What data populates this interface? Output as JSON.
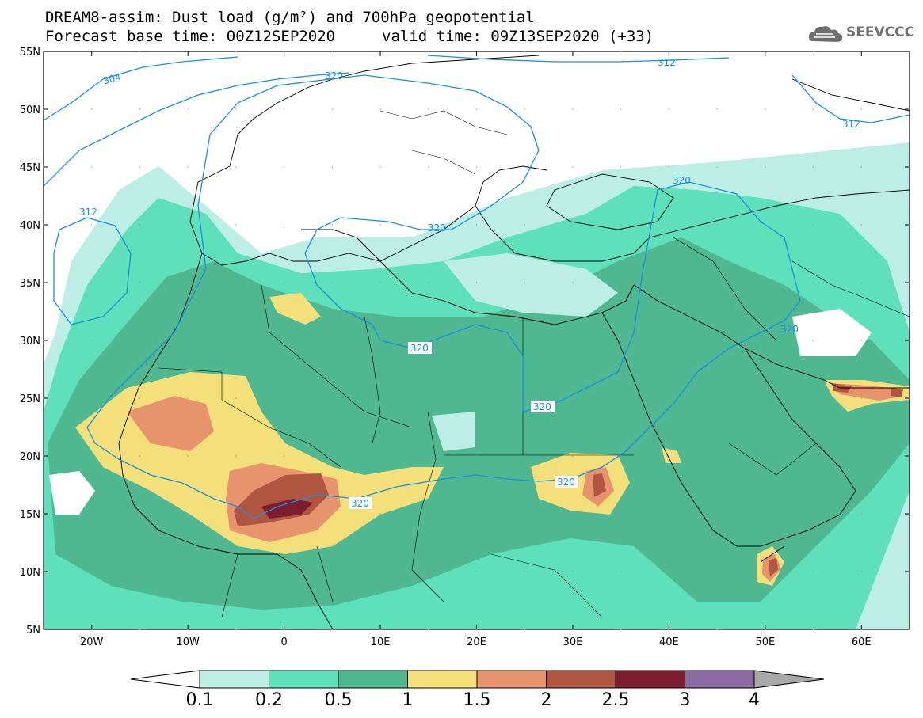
{
  "header": {
    "title": "DREAM8-assim: Dust load (g/m²) and 700hPa geopotential",
    "base_time": "Forecast base time: 00Z12SEP2020",
    "valid_time": "valid time: 09Z13SEP2020 (+33)"
  },
  "logo": {
    "text": "SEEVCCC",
    "icon": "cloud-logo-icon"
  },
  "map": {
    "lon_range": [
      -25,
      65
    ],
    "lat_range": [
      5,
      55
    ],
    "lat_ticks": [
      "5N",
      "10N",
      "15N",
      "20N",
      "25N",
      "30N",
      "35N",
      "40N",
      "45N",
      "50N",
      "55N"
    ],
    "lon_ticks": [
      "20W",
      "10W",
      "0",
      "10E",
      "20E",
      "30E",
      "40E",
      "50E",
      "60E"
    ],
    "contour_labels": [
      "304",
      "312",
      "312",
      "312",
      "320",
      "320",
      "320",
      "320",
      "320",
      "320",
      "320",
      "320"
    ]
  },
  "colorbar": {
    "labels": [
      "0.1",
      "0.2",
      "0.5",
      "1",
      "1.5",
      "2",
      "2.5",
      "3",
      "4"
    ],
    "colors": [
      "#ffffff",
      "#bdeee6",
      "#5ee0ba",
      "#4fb891",
      "#f4e07a",
      "#e7936d",
      "#b0553f",
      "#7d1c2e",
      "#8a6aa0",
      "#a8a8a8"
    ]
  },
  "contour_color": "#1a8fe0"
}
